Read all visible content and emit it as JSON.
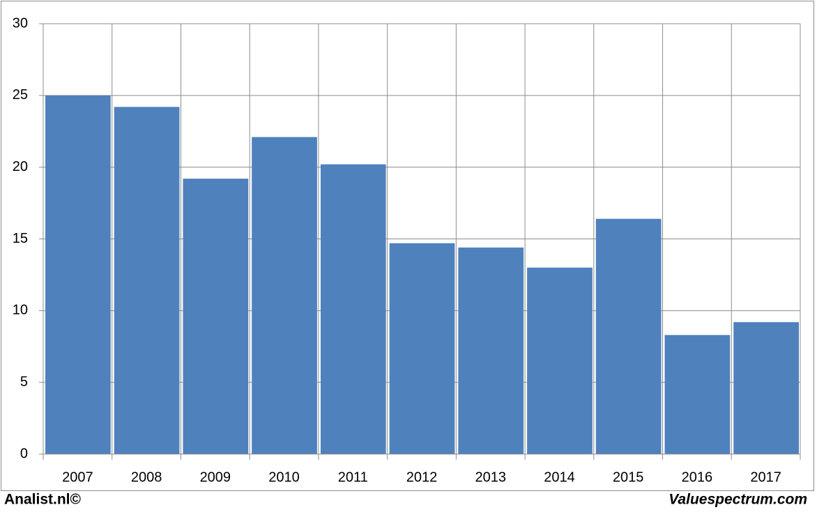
{
  "chart_data": {
    "type": "bar",
    "categories": [
      "2007",
      "2008",
      "2009",
      "2010",
      "2011",
      "2012",
      "2013",
      "2014",
      "2015",
      "2016",
      "2017"
    ],
    "values": [
      25.0,
      24.2,
      19.2,
      22.1,
      20.2,
      14.7,
      14.4,
      13.0,
      16.4,
      8.3,
      9.2
    ],
    "color": "#4f81bd",
    "ylim": [
      0,
      30
    ],
    "yticks": [
      0,
      5,
      10,
      15,
      20,
      25,
      30
    ],
    "grid": true,
    "footer_left": "Analist.nl©",
    "footer_right": "Valuespectrum.com"
  }
}
